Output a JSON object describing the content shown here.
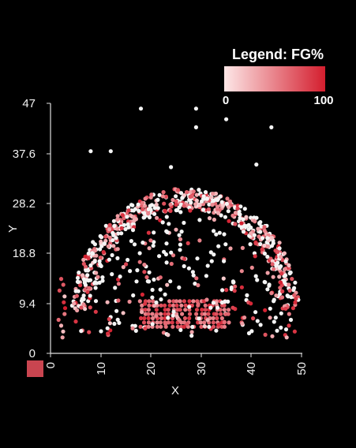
{
  "chart_data": {
    "type": "scatter",
    "title": "",
    "xlabel": "X",
    "ylabel": "Y",
    "xlim": [
      0,
      50
    ],
    "ylim": [
      0,
      47
    ],
    "x_ticks": [
      "0",
      "10",
      "20",
      "30",
      "40",
      "50"
    ],
    "y_ticks": [
      "0",
      "9.4",
      "18.8",
      "28.2",
      "37.6",
      "47"
    ],
    "legend": {
      "title": "Legend: FG%",
      "min_label": "0",
      "max_label": "100",
      "position": "top-right"
    },
    "color_scale": {
      "low": "#fde7e7",
      "high": "#d41e2e"
    },
    "background": "#000000",
    "grid": false,
    "note": "Each point is one location; point color encodes FG% (0-100)."
  }
}
